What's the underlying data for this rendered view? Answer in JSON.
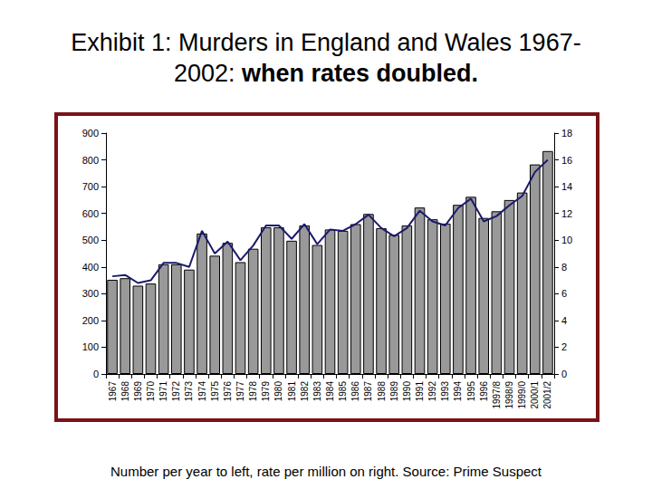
{
  "chart_data": {
    "type": "bar",
    "title": "Exhibit 1: Murders in England and Wales 1967-2002:",
    "subtitle": "when rates doubled.",
    "annotations": [
      "Number per year to left, rate per million on right. Source: Prime Suspect"
    ],
    "categories": [
      "1967",
      "1968",
      "1969",
      "1970",
      "1971",
      "1972",
      "1973",
      "1974",
      "1975",
      "1976",
      "1977",
      "1978",
      "1979",
      "1980",
      "1981",
      "1982",
      "1983",
      "1984",
      "1985",
      "1986",
      "1987",
      "1988",
      "1989",
      "1990",
      "1991",
      "1992",
      "1993",
      "1994",
      "1995",
      "1996",
      "1997/8",
      "1998/9",
      "1999/0",
      "2000/1",
      "2001/2"
    ],
    "series": [
      {
        "type": "bar",
        "color": "#999999",
        "values": [
          352,
          358,
          330,
          338,
          410,
          410,
          390,
          525,
          442,
          490,
          418,
          468,
          548,
          548,
          498,
          555,
          482,
          540,
          535,
          560,
          598,
          545,
          520,
          555,
          622,
          578,
          562,
          632,
          662,
          583,
          608,
          650,
          678,
          783,
          833
        ]
      },
      {
        "type": "line",
        "axis": "y2",
        "color": "#1a1a6e",
        "values": [
          7.3,
          7.4,
          6.8,
          7.0,
          8.3,
          8.3,
          8.0,
          10.7,
          9.0,
          9.9,
          8.5,
          9.6,
          11.1,
          11.1,
          10.1,
          11.2,
          9.7,
          10.8,
          10.7,
          11.2,
          11.9,
          10.9,
          10.3,
          10.9,
          12.2,
          11.4,
          11.1,
          12.4,
          13.1,
          11.4,
          11.8,
          12.6,
          13.3,
          15.1,
          16.0
        ]
      }
    ],
    "ylim": [
      0,
      900
    ],
    "yticks": [
      0,
      100,
      200,
      300,
      400,
      500,
      600,
      700,
      800,
      900
    ],
    "y2lim": [
      0,
      18
    ],
    "y2ticks": [
      0,
      2,
      4,
      6,
      8,
      10,
      12,
      14,
      16,
      18
    ],
    "grid": false
  }
}
